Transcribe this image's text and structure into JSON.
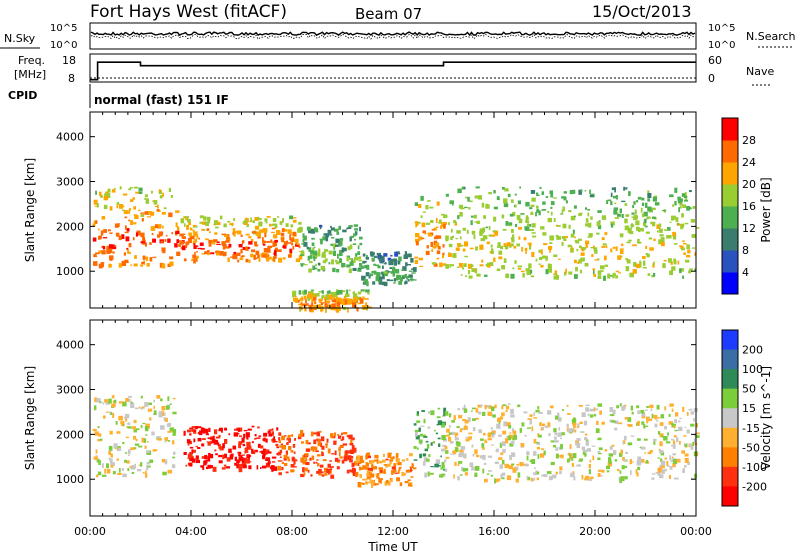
{
  "header": {
    "station": "Fort Hays West (fitACF)",
    "beam": "Beam 07",
    "date": "15/Oct/2013"
  },
  "noise_panel": {
    "left_label": "N.Sky",
    "right_label": "N.Search",
    "tick_top": "10^5",
    "tick_bottom": "10^0"
  },
  "freq_panel": {
    "label_line1": "Freq.",
    "label_line2": "[MHz]",
    "left_ticks": [
      "18",
      "8"
    ],
    "right_ticks": [
      "60",
      "0"
    ],
    "right_label": "Nave"
  },
  "cpid": {
    "label": "CPID",
    "value": "normal (fast) 151 IF"
  },
  "axes": {
    "ylabel": "Slant Range [km]",
    "yticks": [
      "1000",
      "2000",
      "3000",
      "4000"
    ],
    "xticks": [
      "00:00",
      "04:00",
      "08:00",
      "12:00",
      "16:00",
      "20:00",
      "00:00"
    ],
    "xlabel": "Time UT"
  },
  "power_scale": {
    "label": "Power [dB]",
    "ticks": [
      "4",
      "8",
      "12",
      "16",
      "20",
      "24",
      "28"
    ],
    "colors": [
      "#0000ff",
      "#2a52be",
      "#3a7d6e",
      "#4caf50",
      "#9acd32",
      "#ffa500",
      "#ff6a00",
      "#ff0000"
    ]
  },
  "velocity_scale": {
    "label": "Velocity [m s^-1]",
    "ticks": [
      "200",
      "100",
      "50",
      "15",
      "-15",
      "-50",
      "-100",
      "-200"
    ],
    "colors": [
      "#1e3cff",
      "#3a6ea5",
      "#2e8b57",
      "#7ccd3a",
      "#c8c8c8",
      "#ffb030",
      "#ff8000",
      "#ff3010",
      "#ff0000"
    ]
  },
  "chart_data": [
    {
      "type": "line",
      "title": "N.Sky",
      "x_range_hours": [
        0,
        24
      ],
      "x": [
        0,
        24
      ],
      "series": [
        {
          "values": [
            3.2,
            3.2
          ]
        }
      ]
    },
    {
      "type": "line",
      "title": "Freq. [MHz]",
      "ylim": [
        8,
        18
      ],
      "x": [
        0,
        0.3,
        0.3,
        2.0,
        2.0,
        14.0,
        14.0,
        24.0
      ],
      "series": [
        {
          "values": [
            8,
            8,
            15.5,
            15.5,
            14.0,
            14.0,
            15.5,
            15.5
          ]
        }
      ]
    },
    {
      "type": "heatmap",
      "title": "Power [dB]",
      "xlabel": "Time UT",
      "ylabel": "Slant Range [km]",
      "xlim": [
        0,
        24
      ],
      "ylim": [
        180,
        4550
      ],
      "zlim": [
        0,
        32
      ],
      "bands": [
        {
          "t0": 0.1,
          "t1": 3.3,
          "r0": 1150,
          "r1": 2900,
          "peak": 24
        },
        {
          "t0": 3.3,
          "t1": 3.7,
          "r0": 1400,
          "r1": 2400,
          "peak": 26
        },
        {
          "t0": 3.7,
          "t1": 8.3,
          "r0": 1250,
          "r1": 2250,
          "peak": 24
        },
        {
          "t0": 8.3,
          "t1": 10.7,
          "r0": 1050,
          "r1": 2050,
          "peak": 14
        },
        {
          "t0": 10.7,
          "t1": 12.8,
          "r0": 750,
          "r1": 1450,
          "peak": 12
        },
        {
          "t0": 12.8,
          "t1": 14.0,
          "r0": 1100,
          "r1": 2700,
          "peak": 22
        },
        {
          "t0": 14.0,
          "t1": 24.0,
          "r0": 900,
          "r1": 2900,
          "peak": 18
        },
        {
          "t0": 8.0,
          "t1": 11.0,
          "r0": 180,
          "r1": 600,
          "peak": 22
        }
      ]
    },
    {
      "type": "heatmap",
      "title": "Velocity [m s^-1]",
      "xlabel": "Time UT",
      "ylabel": "Slant Range [km]",
      "xlim": [
        0,
        24
      ],
      "ylim": [
        180,
        4550
      ],
      "zlim": [
        -250,
        250
      ],
      "bands": [
        {
          "t0": 0.1,
          "t1": 3.3,
          "r0": 1100,
          "r1": 2900,
          "vel": 0
        },
        {
          "t0": 3.7,
          "t1": 7.4,
          "r0": 1250,
          "r1": 2200,
          "vel": -220
        },
        {
          "t0": 7.4,
          "t1": 10.5,
          "r0": 1100,
          "r1": 2100,
          "vel": -110
        },
        {
          "t0": 10.5,
          "t1": 12.8,
          "r0": 900,
          "r1": 1600,
          "vel": -60
        },
        {
          "t0": 12.8,
          "t1": 14.0,
          "r0": 1100,
          "r1": 2600,
          "vel": 30
        },
        {
          "t0": 14.0,
          "t1": 24.0,
          "r0": 1000,
          "r1": 2700,
          "vel": 0
        }
      ]
    }
  ]
}
